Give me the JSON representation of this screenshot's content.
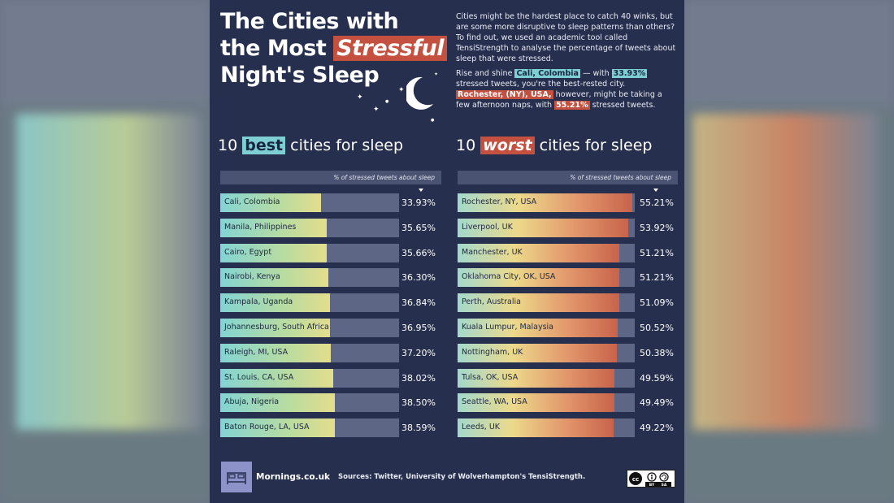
{
  "title": {
    "line1": "The Cities with",
    "line2_pre": "the Most ",
    "line2_hl": "Stressful",
    "line3": "Night's Sleep"
  },
  "intro": {
    "p1": "Cities might be the hardest place to catch 40 winks, but are some more disruptive to sleep patterns than others? To find out, we used an academic tool called TensiStrength to analyse the percentage of tweets about sleep that were stressed.",
    "p2_a": "Rise and shine ",
    "p2_city": "Cali, Colombia",
    "p2_b": " — with ",
    "p2_pct": "33.93%",
    "p2_c": " stressed tweets, you're the best-rested city.",
    "p3_city": "Rochester, (NY), USA,",
    "p3_b": " however, might be taking a few afternoon naps, with ",
    "p3_pct": "55.21%",
    "p3_c": " stressed tweets."
  },
  "best": {
    "pre": "10 ",
    "hl": "best",
    "post": " cities for sleep",
    "col_header": "% of stressed tweets about sleep"
  },
  "worst": {
    "pre": "10 ",
    "hl": "worst",
    "post": " cities for sleep",
    "col_header": "% of stressed tweets about sleep"
  },
  "footer": {
    "brand": "Mornings.co.uk",
    "sources": "Sources: Twitter, University of Wolverhampton's TensiStrength."
  },
  "colors": {
    "background": "#262f4d",
    "best_accent": "#7dcfd3",
    "worst_accent": "#c4503f"
  },
  "icons": [
    "moon-icon",
    "bed-icon",
    "creative-commons-icon"
  ],
  "chart_data": [
    {
      "type": "bar",
      "categories": [
        "Cali, Colombia",
        "Manila, Philippines",
        "Cairo, Egypt",
        "Nairobi, Kenya",
        "Kampala, Uganda",
        "Johannesburg, South Africa",
        "Raleigh, MI, USA",
        "St. Louis, CA, USA",
        "Abuja, Nigeria",
        "Baton Rouge, LA, USA"
      ],
      "values": [
        33.93,
        35.65,
        35.66,
        36.3,
        36.84,
        36.95,
        37.2,
        38.02,
        38.5,
        38.59
      ],
      "labels": [
        "33.93%",
        "35.65%",
        "35.66%",
        "36.30%",
        "36.84%",
        "36.95%",
        "37.20%",
        "38.02%",
        "38.50%",
        "38.59%"
      ],
      "title": "10 best cities for sleep",
      "ylabel": "% of stressed tweets about sleep",
      "xlim": [
        0,
        60
      ]
    },
    {
      "type": "bar",
      "categories": [
        "Rochester, NY, USA",
        "Liverpool, UK",
        "Manchester, UK",
        "Oklahoma City, OK, USA",
        "Perth, Australia",
        "Kuala Lumpur, Malaysia",
        "Nottingham, UK",
        "Tulsa, OK, USA",
        "Seattle, WA, USA",
        "Leeds, UK"
      ],
      "values": [
        55.21,
        53.92,
        51.21,
        51.21,
        51.09,
        50.52,
        50.38,
        49.59,
        49.49,
        49.22
      ],
      "labels": [
        "55.21%",
        "53.92%",
        "51.21%",
        "51.21%",
        "51.09%",
        "50.52%",
        "50.38%",
        "49.59%",
        "49.49%",
        "49.22%"
      ],
      "title": "10 worst cities for sleep",
      "ylabel": "% of stressed tweets about sleep",
      "xlim": [
        0,
        56
      ]
    }
  ]
}
